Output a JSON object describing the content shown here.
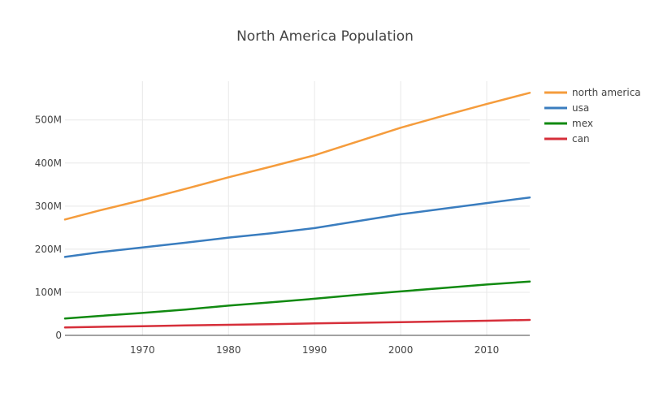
{
  "chart_data": {
    "type": "line",
    "title": "North America Population",
    "xlabel": "",
    "ylabel": "",
    "x": [
      1961,
      1965,
      1970,
      1975,
      1980,
      1985,
      1990,
      1995,
      2000,
      2005,
      2010,
      2015
    ],
    "xlim": [
      1961,
      2015
    ],
    "ylim": [
      0,
      590000000
    ],
    "x_ticks": [
      {
        "value": 1970,
        "label": "1970"
      },
      {
        "value": 1980,
        "label": "1980"
      },
      {
        "value": 1990,
        "label": "1990"
      },
      {
        "value": 2000,
        "label": "2000"
      },
      {
        "value": 2010,
        "label": "2010"
      }
    ],
    "y_ticks": [
      {
        "value": 0,
        "label": "0"
      },
      {
        "value": 100000000,
        "label": "100M"
      },
      {
        "value": 200000000,
        "label": "200M"
      },
      {
        "value": 300000000,
        "label": "300M"
      },
      {
        "value": 400000000,
        "label": "400M"
      },
      {
        "value": 500000000,
        "label": "500M"
      }
    ],
    "grid": true,
    "legend_position": "top-right",
    "series": [
      {
        "name": "north america",
        "color": "#f59c3c",
        "values": [
          269000000,
          290000000,
          314000000,
          340000000,
          367000000,
          392000000,
          418000000,
          450000000,
          482000000,
          510000000,
          537000000,
          563000000
        ]
      },
      {
        "name": "usa",
        "color": "#3a7dbf",
        "values": [
          182000000,
          193000000,
          204000000,
          215000000,
          227000000,
          237000000,
          249000000,
          265000000,
          281000000,
          294000000,
          307000000,
          320000000
        ]
      },
      {
        "name": "mex",
        "color": "#118a11",
        "values": [
          39000000,
          45000000,
          52000000,
          60000000,
          69000000,
          77000000,
          85000000,
          94000000,
          102000000,
          110000000,
          118000000,
          125000000
        ]
      },
      {
        "name": "can",
        "color": "#d62f3a",
        "values": [
          18200000,
          19700000,
          21300000,
          23000000,
          24500000,
          25800000,
          27700000,
          29300000,
          30700000,
          32200000,
          34000000,
          35800000
        ]
      }
    ]
  }
}
